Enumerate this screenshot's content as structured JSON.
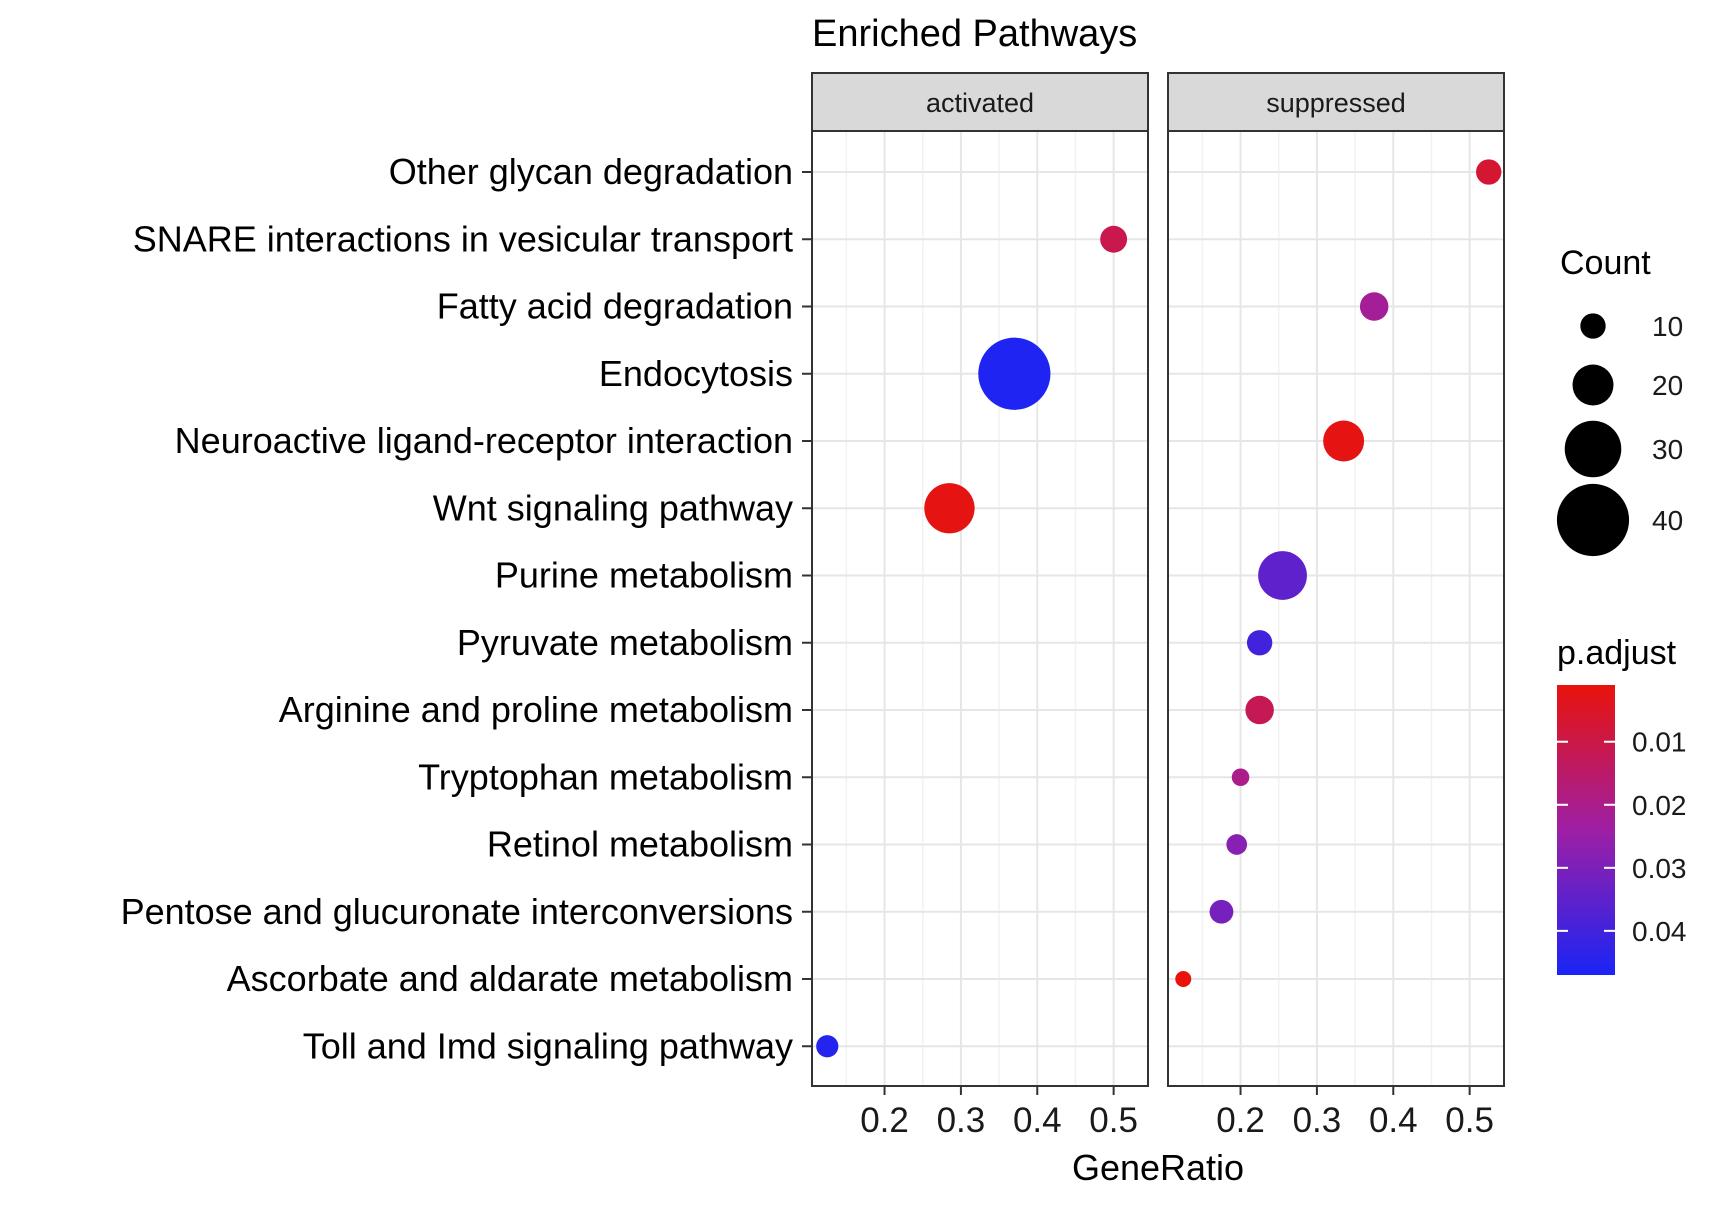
{
  "chart_data": {
    "type": "scatter",
    "title": "Enriched Pathways",
    "xlabel": "GeneRatio",
    "ylabel": "",
    "panels": [
      "activated",
      "suppressed"
    ],
    "categories": [
      "Other glycan degradation",
      "SNARE interactions in vesicular transport",
      "Fatty acid degradation",
      "Endocytosis",
      "Neuroactive ligand-receptor interaction",
      "Wnt signaling pathway",
      "Purine metabolism",
      "Pyruvate metabolism",
      "Arginine and proline metabolism",
      "Tryptophan metabolism",
      "Retinol metabolism",
      "Pentose and glucuronate interconversions",
      "Ascorbate and aldarate metabolism",
      "Toll and Imd signaling pathway"
    ],
    "xlim": [
      0.105,
      0.545
    ],
    "xticks": [
      0.2,
      0.3,
      0.4,
      0.5
    ],
    "xtick_labels": [
      "0.2",
      "0.3",
      "0.4",
      "0.5"
    ],
    "points": [
      {
        "panel": "activated",
        "category": "SNARE interactions in vesicular transport",
        "x": 0.5,
        "count": 11,
        "p_adjust": 0.011
      },
      {
        "panel": "activated",
        "category": "Endocytosis",
        "x": 0.37,
        "count": 40,
        "p_adjust": 0.046
      },
      {
        "panel": "activated",
        "category": "Wnt signaling pathway",
        "x": 0.285,
        "count": 26,
        "p_adjust": 0.002
      },
      {
        "panel": "activated",
        "category": "Toll and Imd signaling pathway",
        "x": 0.125,
        "count": 8,
        "p_adjust": 0.045
      },
      {
        "panel": "suppressed",
        "category": "Other glycan degradation",
        "x": 0.525,
        "count": 10,
        "p_adjust": 0.007
      },
      {
        "panel": "suppressed",
        "category": "Fatty acid degradation",
        "x": 0.375,
        "count": 12,
        "p_adjust": 0.022
      },
      {
        "panel": "suppressed",
        "category": "Neuroactive ligand-receptor interaction",
        "x": 0.335,
        "count": 20,
        "p_adjust": 0.002
      },
      {
        "panel": "suppressed",
        "category": "Purine metabolism",
        "x": 0.255,
        "count": 25,
        "p_adjust": 0.035
      },
      {
        "panel": "suppressed",
        "category": "Pyruvate metabolism",
        "x": 0.225,
        "count": 10,
        "p_adjust": 0.04
      },
      {
        "panel": "suppressed",
        "category": "Arginine and proline metabolism",
        "x": 0.225,
        "count": 12,
        "p_adjust": 0.012
      },
      {
        "panel": "suppressed",
        "category": "Tryptophan metabolism",
        "x": 0.2,
        "count": 5,
        "p_adjust": 0.02
      },
      {
        "panel": "suppressed",
        "category": "Retinol metabolism",
        "x": 0.195,
        "count": 7,
        "p_adjust": 0.028
      },
      {
        "panel": "suppressed",
        "category": "Pentose and glucuronate interconversions",
        "x": 0.175,
        "count": 9,
        "p_adjust": 0.031
      },
      {
        "panel": "suppressed",
        "category": "Ascorbate and aldarate metabolism",
        "x": 0.125,
        "count": 4,
        "p_adjust": 0.001
      }
    ],
    "size_legend": {
      "title": "Count",
      "values": [
        10,
        20,
        30,
        40
      ],
      "labels": [
        "10",
        "20",
        "30",
        "40"
      ]
    },
    "color_legend": {
      "title": "p.adjust",
      "range": [
        0.001,
        0.047
      ],
      "ticks": [
        0.01,
        0.02,
        0.03,
        0.04
      ],
      "tick_labels": [
        "0.01",
        "0.02",
        "0.03",
        "0.04"
      ],
      "low_color": "#e8130b",
      "high_color": "#1a24f5",
      "mid_color": "#9e1fa5"
    },
    "grid": true,
    "legend_position": "right"
  }
}
